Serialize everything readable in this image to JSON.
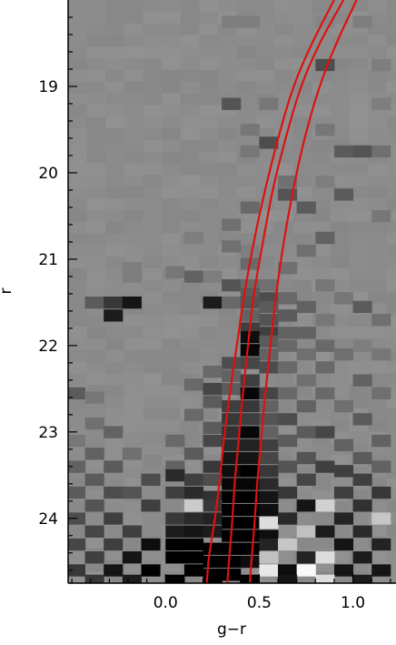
{
  "chart_data": {
    "type": "heatmap",
    "title": "",
    "xlabel": "g−r",
    "ylabel": "r",
    "xlim": [
      -0.52,
      1.23
    ],
    "ylim": [
      24.75,
      18.0
    ],
    "y_reversed": true,
    "x_ticks": [
      0.0,
      0.5,
      1.0
    ],
    "x_tick_labels": [
      "0.0",
      "0.5",
      "1.0"
    ],
    "y_ticks": [
      19,
      20,
      21,
      22,
      23,
      24
    ],
    "y_tick_labels": [
      "19",
      "20",
      "21",
      "22",
      "23",
      "24"
    ],
    "grid": false,
    "legend": "none",
    "colormap": "gray (background #8c8c8c; darker = positive excess, lighter = deficit)",
    "bins": {
      "x_start": -0.52,
      "x_step": 0.1,
      "nx": 18,
      "y_start": 18.0,
      "y_step": 0.135,
      "ny": 50
    },
    "cells": [
      [
        0.35,
        18.25,
        0.1
      ],
      [
        0.45,
        18.25,
        0.1
      ],
      [
        0.85,
        18.25,
        0.05
      ],
      [
        1.05,
        18.25,
        0.1
      ],
      [
        0.85,
        18.75,
        0.45
      ],
      [
        1.15,
        18.75,
        0.1
      ],
      [
        0.35,
        19.2,
        0.4
      ],
      [
        0.55,
        19.2,
        0.15
      ],
      [
        1.15,
        19.2,
        0.1
      ],
      [
        0.45,
        19.5,
        0.15
      ],
      [
        0.85,
        19.5,
        0.15
      ],
      [
        0.55,
        19.65,
        0.45
      ],
      [
        0.95,
        19.75,
        0.35
      ],
      [
        1.05,
        19.75,
        0.4
      ],
      [
        0.45,
        19.75,
        0.15
      ],
      [
        1.15,
        19.75,
        0.2
      ],
      [
        0.65,
        20.1,
        0.2
      ],
      [
        0.85,
        20.1,
        0.1
      ],
      [
        0.65,
        20.25,
        0.4
      ],
      [
        0.95,
        20.25,
        0.35
      ],
      [
        0.45,
        20.4,
        0.25
      ],
      [
        0.75,
        20.4,
        0.35
      ],
      [
        1.15,
        20.5,
        0.15
      ],
      [
        0.35,
        20.6,
        0.2
      ],
      [
        0.85,
        20.75,
        0.3
      ],
      [
        0.45,
        20.9,
        0.1
      ],
      [
        0.75,
        20.9,
        0.2
      ],
      [
        0.15,
        20.75,
        0.1
      ],
      [
        0.35,
        20.85,
        0.2
      ],
      [
        0.45,
        21.05,
        0.25
      ],
      [
        0.65,
        21.1,
        0.2
      ],
      [
        -0.18,
        21.1,
        0.1
      ],
      [
        -0.18,
        21.2,
        0.1
      ],
      [
        0.05,
        21.15,
        0.15
      ],
      [
        0.15,
        21.2,
        0.3
      ],
      [
        0.25,
        21.2,
        0.1
      ],
      [
        0.35,
        21.3,
        0.4
      ],
      [
        0.45,
        21.3,
        0.25
      ],
      [
        0.55,
        21.3,
        0.2
      ],
      [
        0.85,
        21.3,
        0.15
      ],
      [
        0.45,
        21.4,
        0.35
      ],
      [
        0.55,
        21.45,
        0.45
      ],
      [
        0.65,
        21.45,
        0.25
      ],
      [
        0.95,
        21.45,
        0.15
      ],
      [
        -0.38,
        21.5,
        0.35
      ],
      [
        -0.28,
        21.5,
        0.6
      ],
      [
        -0.18,
        21.5,
        0.85
      ],
      [
        0.25,
        21.5,
        0.8
      ],
      [
        0.35,
        21.5,
        0.25
      ],
      [
        0.45,
        21.5,
        0.4
      ],
      [
        0.55,
        21.55,
        0.35
      ],
      [
        0.75,
        21.55,
        0.3
      ],
      [
        1.05,
        21.55,
        0.35
      ],
      [
        -0.28,
        21.65,
        0.8
      ],
      [
        0.45,
        21.65,
        0.3
      ],
      [
        0.55,
        21.7,
        0.4
      ],
      [
        0.65,
        21.65,
        0.35
      ],
      [
        0.85,
        21.7,
        0.15
      ],
      [
        1.15,
        21.7,
        0.2
      ],
      [
        0.45,
        21.8,
        0.55
      ],
      [
        0.55,
        21.85,
        0.55
      ],
      [
        0.65,
        21.85,
        0.3
      ],
      [
        0.75,
        21.85,
        0.3
      ],
      [
        0.45,
        21.9,
        0.9
      ],
      [
        0.55,
        21.95,
        0.35
      ],
      [
        0.65,
        22.0,
        0.25
      ],
      [
        0.85,
        22.0,
        0.25
      ],
      [
        1.05,
        22.0,
        0.1
      ],
      [
        0.45,
        22.05,
        0.95
      ],
      [
        0.55,
        22.1,
        0.3
      ],
      [
        0.75,
        22.1,
        0.2
      ],
      [
        0.95,
        22.1,
        0.2
      ],
      [
        1.15,
        22.1,
        0.15
      ],
      [
        0.35,
        22.2,
        0.45
      ],
      [
        0.45,
        22.2,
        0.5
      ],
      [
        0.55,
        22.25,
        0.45
      ],
      [
        0.65,
        22.25,
        0.25
      ],
      [
        0.85,
        22.25,
        0.25
      ],
      [
        0.25,
        22.3,
        0.25
      ],
      [
        0.35,
        22.35,
        0.3
      ],
      [
        0.45,
        22.4,
        0.55
      ],
      [
        0.75,
        22.4,
        0.2
      ],
      [
        1.05,
        22.4,
        0.3
      ],
      [
        0.15,
        22.45,
        0.25
      ],
      [
        0.25,
        22.5,
        0.5
      ],
      [
        0.35,
        22.5,
        0.35
      ],
      [
        0.45,
        22.55,
        0.95
      ],
      [
        0.55,
        22.55,
        0.5
      ],
      [
        0.65,
        22.55,
        0.25
      ],
      [
        0.85,
        22.55,
        0.25
      ],
      [
        1.15,
        22.55,
        0.2
      ],
      [
        -0.48,
        22.55,
        0.35
      ],
      [
        -0.38,
        22.6,
        0.15
      ],
      [
        0.25,
        22.65,
        0.35
      ],
      [
        0.35,
        22.7,
        0.55
      ],
      [
        0.45,
        22.7,
        0.6
      ],
      [
        0.55,
        22.7,
        0.3
      ],
      [
        0.75,
        22.7,
        0.3
      ],
      [
        0.95,
        22.7,
        0.2
      ],
      [
        0.15,
        22.8,
        0.25
      ],
      [
        0.35,
        22.85,
        0.6
      ],
      [
        0.45,
        22.85,
        0.55
      ],
      [
        0.55,
        22.85,
        0.4
      ],
      [
        0.65,
        22.85,
        0.45
      ],
      [
        1.05,
        22.85,
        0.35
      ],
      [
        -0.38,
        22.9,
        0.2
      ],
      [
        0.25,
        22.95,
        0.35
      ],
      [
        0.35,
        23.0,
        0.65
      ],
      [
        0.45,
        23.0,
        0.95
      ],
      [
        0.55,
        23.0,
        0.3
      ],
      [
        0.75,
        23.0,
        0.35
      ],
      [
        0.85,
        23.0,
        0.5
      ],
      [
        -0.28,
        23.0,
        0.3
      ],
      [
        -0.48,
        23.1,
        0.15
      ],
      [
        0.05,
        23.1,
        0.25
      ],
      [
        0.25,
        23.1,
        0.5
      ],
      [
        0.35,
        23.15,
        0.7
      ],
      [
        0.45,
        23.15,
        0.75
      ],
      [
        0.55,
        23.15,
        0.55
      ],
      [
        0.65,
        23.1,
        0.35
      ],
      [
        0.95,
        23.15,
        0.3
      ],
      [
        1.15,
        23.1,
        0.3
      ],
      [
        -0.38,
        23.25,
        0.3
      ],
      [
        -0.18,
        23.25,
        0.2
      ],
      [
        0.15,
        23.25,
        0.35
      ],
      [
        0.35,
        23.3,
        0.85
      ],
      [
        0.45,
        23.3,
        0.85
      ],
      [
        0.55,
        23.3,
        0.5
      ],
      [
        0.75,
        23.3,
        0.4
      ],
      [
        1.05,
        23.3,
        0.35
      ],
      [
        -0.48,
        23.4,
        0.3
      ],
      [
        -0.28,
        23.4,
        0.35
      ],
      [
        0.05,
        23.4,
        0.3
      ],
      [
        0.25,
        23.4,
        0.6
      ],
      [
        0.35,
        23.45,
        0.9
      ],
      [
        0.45,
        23.45,
        1.0
      ],
      [
        0.55,
        23.45,
        0.6
      ],
      [
        0.65,
        23.4,
        0.4
      ],
      [
        0.85,
        23.4,
        0.55
      ],
      [
        0.95,
        23.45,
        0.55
      ],
      [
        1.15,
        23.4,
        0.3
      ],
      [
        -0.38,
        23.55,
        0.35
      ],
      [
        -0.08,
        23.55,
        0.45
      ],
      [
        0.05,
        23.5,
        0.7
      ],
      [
        0.15,
        23.55,
        0.55
      ],
      [
        0.25,
        23.55,
        0.45
      ],
      [
        0.35,
        23.6,
        0.95
      ],
      [
        0.45,
        23.6,
        0.95
      ],
      [
        0.55,
        23.6,
        0.7
      ],
      [
        0.75,
        23.55,
        0.5
      ],
      [
        1.05,
        23.55,
        0.55
      ],
      [
        -0.48,
        23.7,
        0.35
      ],
      [
        -0.28,
        23.7,
        0.45
      ],
      [
        -0.18,
        23.7,
        0.4
      ],
      [
        0.05,
        23.7,
        0.55
      ],
      [
        0.15,
        23.7,
        0.7
      ],
      [
        0.25,
        23.75,
        0.65
      ],
      [
        0.35,
        23.75,
        1.0
      ],
      [
        0.45,
        23.75,
        1.0
      ],
      [
        0.55,
        23.75,
        0.85
      ],
      [
        0.65,
        23.7,
        0.6
      ],
      [
        0.95,
        23.7,
        0.55
      ],
      [
        1.15,
        23.7,
        0.6
      ],
      [
        -0.38,
        23.85,
        0.4
      ],
      [
        -0.08,
        23.85,
        0.55
      ],
      [
        0.15,
        23.85,
        -0.55
      ],
      [
        0.25,
        23.85,
        0.6
      ],
      [
        0.35,
        23.9,
        1.0
      ],
      [
        0.45,
        23.9,
        1.0
      ],
      [
        0.55,
        23.9,
        0.9
      ],
      [
        0.75,
        23.85,
        0.85
      ],
      [
        0.85,
        23.85,
        -0.6
      ],
      [
        1.05,
        23.85,
        0.65
      ],
      [
        -0.48,
        24.0,
        0.45
      ],
      [
        -0.28,
        24.0,
        0.55
      ],
      [
        0.05,
        24.0,
        0.6
      ],
      [
        0.15,
        24.0,
        0.7
      ],
      [
        0.25,
        24.0,
        0.75
      ],
      [
        0.35,
        24.05,
        1.0
      ],
      [
        0.45,
        24.05,
        1.0
      ],
      [
        0.55,
        24.05,
        -0.7
      ],
      [
        0.65,
        24.0,
        0.7
      ],
      [
        0.95,
        24.0,
        0.75
      ],
      [
        1.15,
        24.0,
        -0.5
      ],
      [
        -0.38,
        24.15,
        0.5
      ],
      [
        -0.18,
        24.15,
        0.55
      ],
      [
        0.05,
        24.15,
        0.8
      ],
      [
        0.15,
        24.15,
        0.85
      ],
      [
        0.25,
        24.15,
        0.8
      ],
      [
        0.35,
        24.2,
        1.0
      ],
      [
        0.45,
        24.2,
        1.0
      ],
      [
        0.55,
        24.2,
        0.9
      ],
      [
        0.75,
        24.15,
        -0.45
      ],
      [
        0.85,
        24.15,
        0.8
      ],
      [
        1.05,
        24.15,
        0.7
      ],
      [
        -0.48,
        24.3,
        0.5
      ],
      [
        -0.28,
        24.3,
        0.55
      ],
      [
        -0.08,
        24.3,
        0.9
      ],
      [
        0.05,
        24.3,
        1.0
      ],
      [
        0.15,
        24.3,
        1.0
      ],
      [
        0.25,
        24.35,
        1.0
      ],
      [
        0.35,
        24.35,
        1.0
      ],
      [
        0.45,
        24.35,
        1.0
      ],
      [
        0.55,
        24.3,
        0.75
      ],
      [
        0.65,
        24.3,
        -0.5
      ],
      [
        0.95,
        24.3,
        0.85
      ],
      [
        1.15,
        24.3,
        0.75
      ],
      [
        -0.38,
        24.45,
        0.55
      ],
      [
        -0.18,
        24.45,
        0.85
      ],
      [
        0.05,
        24.45,
        1.0
      ],
      [
        0.15,
        24.45,
        1.0
      ],
      [
        0.25,
        24.5,
        1.0
      ],
      [
        0.35,
        24.5,
        1.0
      ],
      [
        0.45,
        24.5,
        0.9
      ],
      [
        0.55,
        24.45,
        -0.45
      ],
      [
        0.75,
        24.45,
        0.75
      ],
      [
        0.85,
        24.45,
        -0.7
      ],
      [
        1.05,
        24.45,
        0.8
      ],
      [
        -0.48,
        24.6,
        0.6
      ],
      [
        -0.28,
        24.6,
        0.85
      ],
      [
        -0.08,
        24.6,
        1.0
      ],
      [
        0.15,
        24.6,
        1.0
      ],
      [
        0.25,
        24.65,
        1.0
      ],
      [
        0.35,
        24.65,
        1.0
      ],
      [
        0.55,
        24.6,
        -0.8
      ],
      [
        0.65,
        24.6,
        0.9
      ],
      [
        0.75,
        24.6,
        -0.95
      ],
      [
        0.95,
        24.6,
        0.85
      ],
      [
        1.15,
        24.6,
        0.85
      ],
      [
        -0.38,
        24.72,
        0.6
      ],
      [
        -0.18,
        24.72,
        0.8
      ],
      [
        0.05,
        24.72,
        1.0
      ],
      [
        0.25,
        24.72,
        1.0
      ],
      [
        0.45,
        24.72,
        1.0
      ],
      [
        0.65,
        24.72,
        0.85
      ],
      [
        0.85,
        24.72,
        -0.7
      ],
      [
        1.05,
        24.72,
        0.8
      ]
    ],
    "series": [
      {
        "color": "#e01010",
        "x": [
          0.33,
          0.34,
          0.35,
          0.36,
          0.37,
          0.39,
          0.41,
          0.44,
          0.47,
          0.52,
          0.57,
          0.64,
          0.72,
          0.82,
          0.95
        ],
        "y": [
          24.75,
          24.45,
          24.2,
          23.9,
          23.55,
          23.1,
          22.6,
          22.0,
          21.4,
          20.8,
          20.2,
          19.6,
          19.0,
          18.5,
          18.0
        ]
      },
      {
        "color": "#e01010",
        "x": [
          0.22,
          0.23,
          0.25,
          0.27,
          0.29,
          0.31,
          0.34,
          0.38,
          0.42,
          0.47,
          0.53,
          0.6,
          0.68,
          0.78,
          0.9
        ],
        "y": [
          24.75,
          24.45,
          24.2,
          23.9,
          23.55,
          23.1,
          22.6,
          22.0,
          21.4,
          20.8,
          20.2,
          19.6,
          19.0,
          18.5,
          18.0
        ]
      },
      {
        "color": "#e01010",
        "x": [
          0.45,
          0.46,
          0.47,
          0.48,
          0.49,
          0.51,
          0.53,
          0.56,
          0.59,
          0.63,
          0.68,
          0.74,
          0.82,
          0.91,
          1.02
        ],
        "y": [
          24.75,
          24.45,
          24.2,
          23.9,
          23.55,
          23.1,
          22.6,
          22.0,
          21.4,
          20.8,
          20.2,
          19.6,
          19.0,
          18.5,
          18.0
        ]
      }
    ]
  }
}
